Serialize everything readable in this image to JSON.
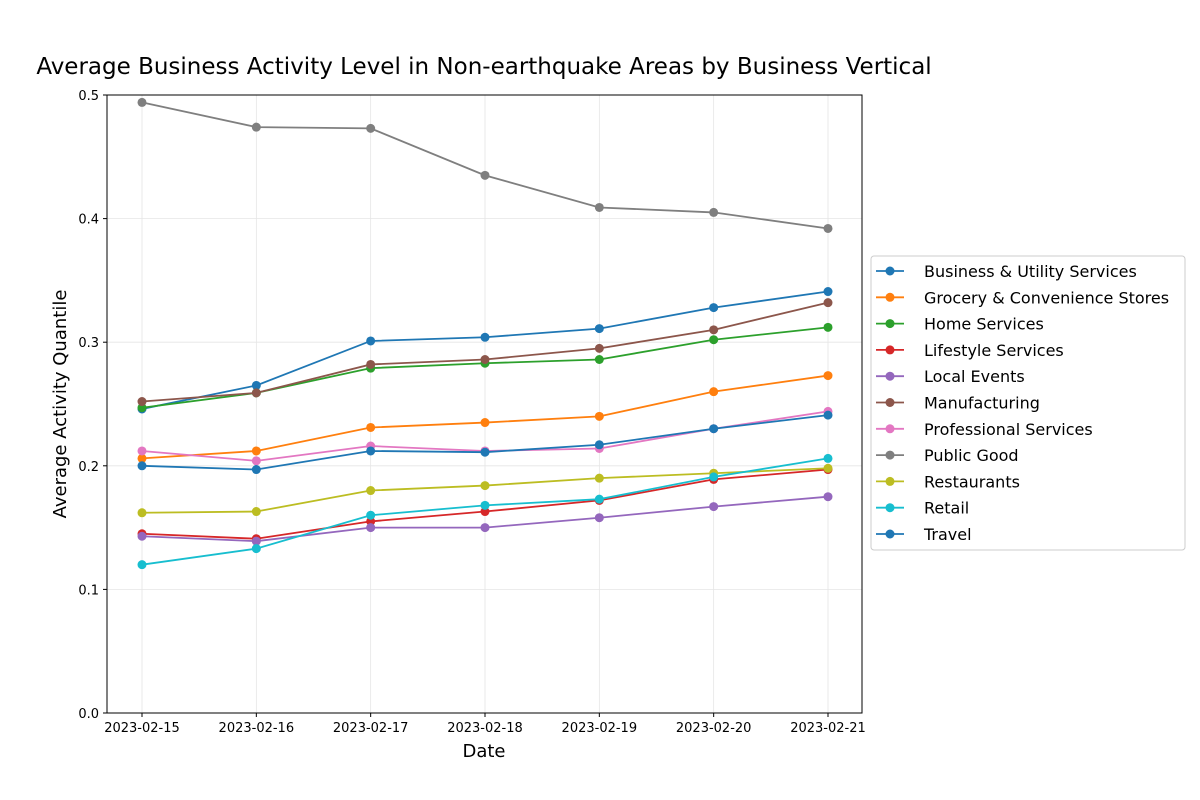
{
  "chart_data": {
    "type": "line",
    "title": "Average Business Activity Level in Non-earthquake Areas by Business Vertical",
    "xlabel": "Date",
    "ylabel": "Average Activity Quantile",
    "ylim": [
      0,
      0.5
    ],
    "yticks": [
      "0.0",
      "0.1",
      "0.2",
      "0.3",
      "0.4",
      "0.5"
    ],
    "grid": true,
    "legend_placement": "right-outside",
    "x": [
      "2023-02-15",
      "2023-02-16",
      "2023-02-17",
      "2023-02-18",
      "2023-02-19",
      "2023-02-20",
      "2023-02-21"
    ],
    "series": [
      {
        "name": "Business & Utility Services",
        "color": "#1f77b4",
        "values": [
          0.246,
          0.265,
          0.301,
          0.304,
          0.311,
          0.328,
          0.341
        ]
      },
      {
        "name": "Grocery & Convenience Stores",
        "color": "#ff7f0e",
        "values": [
          0.206,
          0.212,
          0.231,
          0.235,
          0.24,
          0.26,
          0.273
        ]
      },
      {
        "name": "Home Services",
        "color": "#2ca02c",
        "values": [
          0.247,
          0.259,
          0.279,
          0.283,
          0.286,
          0.302,
          0.312
        ]
      },
      {
        "name": "Lifestyle Services",
        "color": "#d62728",
        "values": [
          0.145,
          0.141,
          0.155,
          0.163,
          0.172,
          0.189,
          0.197
        ]
      },
      {
        "name": "Local Events",
        "color": "#9467bd",
        "values": [
          0.143,
          0.139,
          0.15,
          0.15,
          0.158,
          0.167,
          0.175
        ]
      },
      {
        "name": "Manufacturing",
        "color": "#8c564b",
        "values": [
          0.252,
          0.259,
          0.282,
          0.286,
          0.295,
          0.31,
          0.332
        ]
      },
      {
        "name": "Professional Services",
        "color": "#e377c2",
        "values": [
          0.212,
          0.204,
          0.216,
          0.212,
          0.214,
          0.23,
          0.244
        ]
      },
      {
        "name": "Public Good",
        "color": "#7f7f7f",
        "values": [
          0.494,
          0.474,
          0.473,
          0.435,
          0.409,
          0.405,
          0.392
        ]
      },
      {
        "name": "Restaurants",
        "color": "#bcbd22",
        "values": [
          0.162,
          0.163,
          0.18,
          0.184,
          0.19,
          0.194,
          0.198
        ]
      },
      {
        "name": "Retail",
        "color": "#17becf",
        "values": [
          0.12,
          0.133,
          0.16,
          0.168,
          0.173,
          0.191,
          0.206
        ]
      },
      {
        "name": "Travel",
        "color": "#1f77b4",
        "values": [
          0.2,
          0.197,
          0.212,
          0.211,
          0.217,
          0.23,
          0.241
        ]
      }
    ]
  }
}
